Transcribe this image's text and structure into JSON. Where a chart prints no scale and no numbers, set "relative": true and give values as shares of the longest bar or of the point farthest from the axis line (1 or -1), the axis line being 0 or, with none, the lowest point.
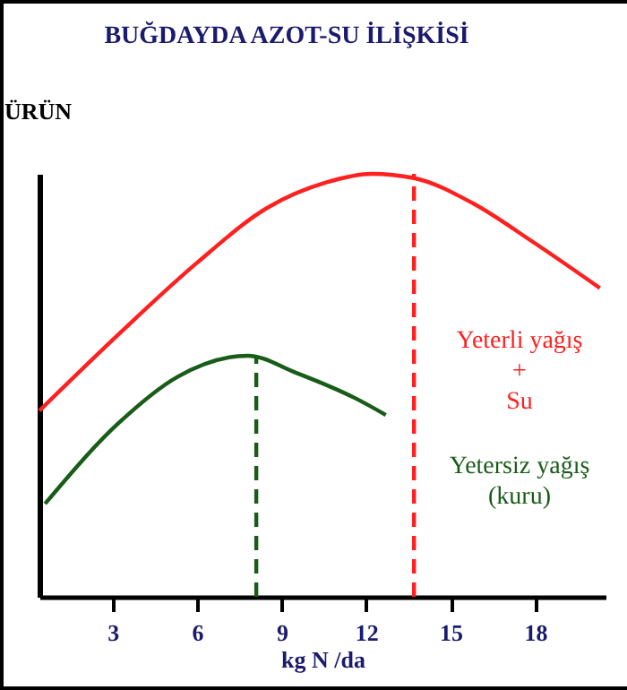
{
  "chart_data": {
    "type": "line",
    "title": "BUĞDAYDA AZOT-SU İLİŞKİSİ",
    "xlabel": "kg N /da",
    "ylabel": "ÜRÜN",
    "relative": true,
    "xlim": [
      0.4,
      20.5
    ],
    "xticks": [
      3,
      6,
      9,
      12,
      15,
      18
    ],
    "grid": false,
    "legend": false,
    "marker": "none",
    "line_style": "solid",
    "series": [
      {
        "name": "Yeterli yağış\n+\nSu",
        "color": "#ff2020",
        "x": [
          0.4,
          3.2,
          6,
          8.5,
          10.6,
          12.2,
          13.7,
          15.8,
          17.9,
          20.3
        ],
        "values": [
          0.44,
          0.62,
          0.79,
          0.92,
          0.98,
          1,
          0.99,
          0.93,
          0.84,
          0.73
        ]
      },
      {
        "name": "Yetersiz yağış\n(kuru)",
        "color": "#185c18",
        "x": [
          0.6,
          3.2,
          5.3,
          7.8,
          9.5,
          11.6,
          12.7
        ],
        "values": [
          0.22,
          0.41,
          0.52,
          0.57,
          0.53,
          0.47,
          0.43
        ]
      }
    ],
    "ref_lines": [
      {
        "axis": "x",
        "value": 8.1,
        "color": "#185c18",
        "line_style": "dashed"
      },
      {
        "axis": "x",
        "value": 13.7,
        "color": "#ff2020",
        "line_style": "dashed"
      }
    ]
  }
}
